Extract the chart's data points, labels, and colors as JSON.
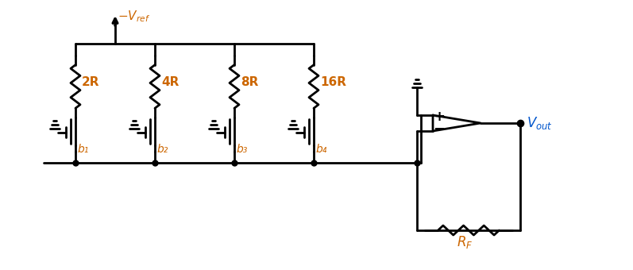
{
  "fig_width": 7.97,
  "fig_height": 3.4,
  "dpi": 100,
  "bg_color": "#ffffff",
  "line_color": "#000000",
  "label_color": "#cc6600",
  "vout_color": "#0055cc",
  "line_width": 2.0,
  "resistor_labels": [
    "2R",
    "4R",
    "8R",
    "16R"
  ],
  "bit_labels": [
    "b₁",
    "b₂",
    "b₃",
    "b₄"
  ],
  "rf_label": "R ₟",
  "vout_label": "V ₒᵤₜ",
  "vref_label": "−V ᴿₑₒ"
}
